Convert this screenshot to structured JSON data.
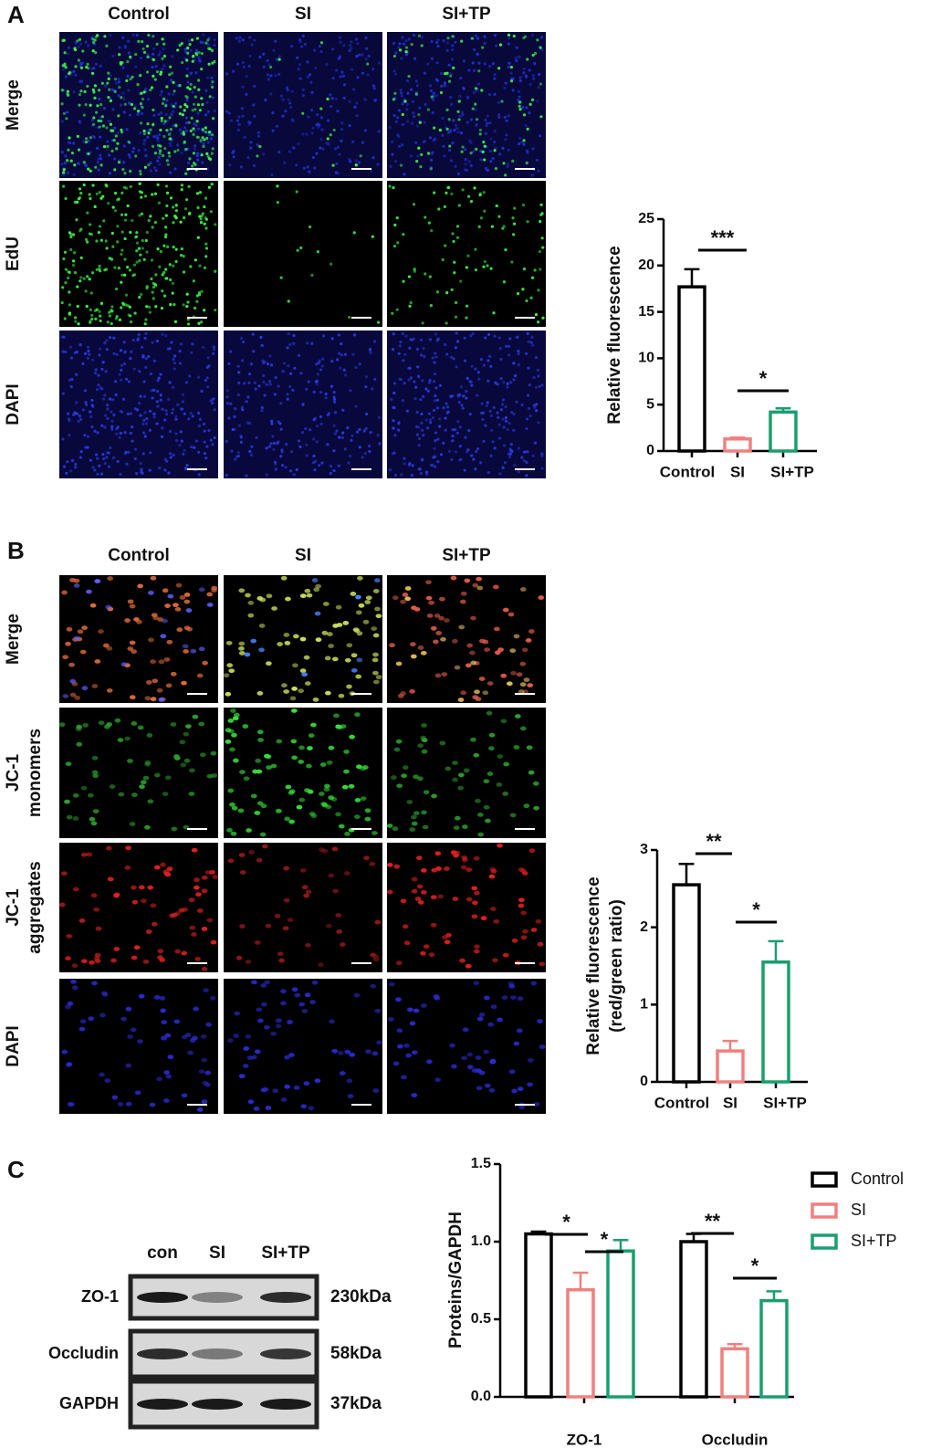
{
  "panels": [
    {
      "label": "A",
      "columns": [
        "Control",
        "SI",
        "SI+TP"
      ],
      "rows": [
        [
          "Merge"
        ],
        [
          "EdU"
        ],
        [
          "DAPI"
        ]
      ]
    },
    {
      "label": "B",
      "columns": [
        "Control",
        "SI",
        "SI+TP"
      ],
      "rows": [
        [
          "Merge"
        ],
        [
          "JC-1",
          "monomers"
        ],
        [
          "JC-1",
          "aggregates"
        ],
        [
          "DAPI"
        ]
      ]
    },
    {
      "label": "C"
    }
  ],
  "blot": {
    "lanes": [
      "con",
      "SI",
      "SI+TP"
    ],
    "rows": [
      {
        "protein": "ZO-1",
        "size": "230kDa"
      },
      {
        "protein": "Occludin",
        "size": "58kDa"
      },
      {
        "protein": "GAPDH",
        "size": "37kDa"
      }
    ]
  },
  "chart_data": [
    {
      "type": "bar",
      "ylabel": [
        "Relative fluorescence"
      ],
      "categories": [
        "Control",
        "SI",
        "SI+TP"
      ],
      "values": [
        17.7,
        1.3,
        4.2
      ],
      "errors": [
        1.9,
        0.15,
        0.4
      ],
      "colors": [
        "#000000",
        "#f08080",
        "#1a9e6e"
      ],
      "ylim": [
        0,
        25
      ],
      "yticks": [
        0,
        5,
        10,
        15,
        20,
        25
      ],
      "annotations": [
        "***",
        "*"
      ]
    },
    {
      "type": "bar",
      "ylabel": [
        "Relative fluorescence",
        "(red/green ratio)"
      ],
      "categories": [
        "Control",
        "SI",
        "SI+TP"
      ],
      "values": [
        2.55,
        0.4,
        1.55
      ],
      "errors": [
        0.27,
        0.13,
        0.27
      ],
      "colors": [
        "#000000",
        "#f08080",
        "#1a9e6e"
      ],
      "ylim": [
        0,
        3
      ],
      "yticks": [
        0,
        1,
        2,
        3
      ],
      "annotations": [
        "**",
        "*"
      ]
    },
    {
      "type": "grouped_bar",
      "ylabel": [
        "Proteins/GAPDH"
      ],
      "categories": [
        "ZO-1",
        "Occludin"
      ],
      "series": [
        {
          "name": "Control",
          "color": "#000000",
          "values": [
            1.05,
            1.0
          ],
          "errors": [
            0.015,
            0.05
          ]
        },
        {
          "name": "SI",
          "color": "#f08080",
          "values": [
            0.69,
            0.31
          ],
          "errors": [
            0.11,
            0.03
          ]
        },
        {
          "name": "SI+TP",
          "color": "#1a9e6e",
          "values": [
            0.94,
            0.62
          ],
          "errors": [
            0.07,
            0.06
          ]
        }
      ],
      "ylim": [
        0,
        1.5
      ],
      "yticks": [
        {
          "value": 0,
          "label": "0.0"
        },
        0.5,
        {
          "value": 1,
          "label": "1.0"
        },
        1.5
      ],
      "legend": "right",
      "annotations": [
        "*",
        "*",
        "**",
        "*"
      ]
    }
  ]
}
